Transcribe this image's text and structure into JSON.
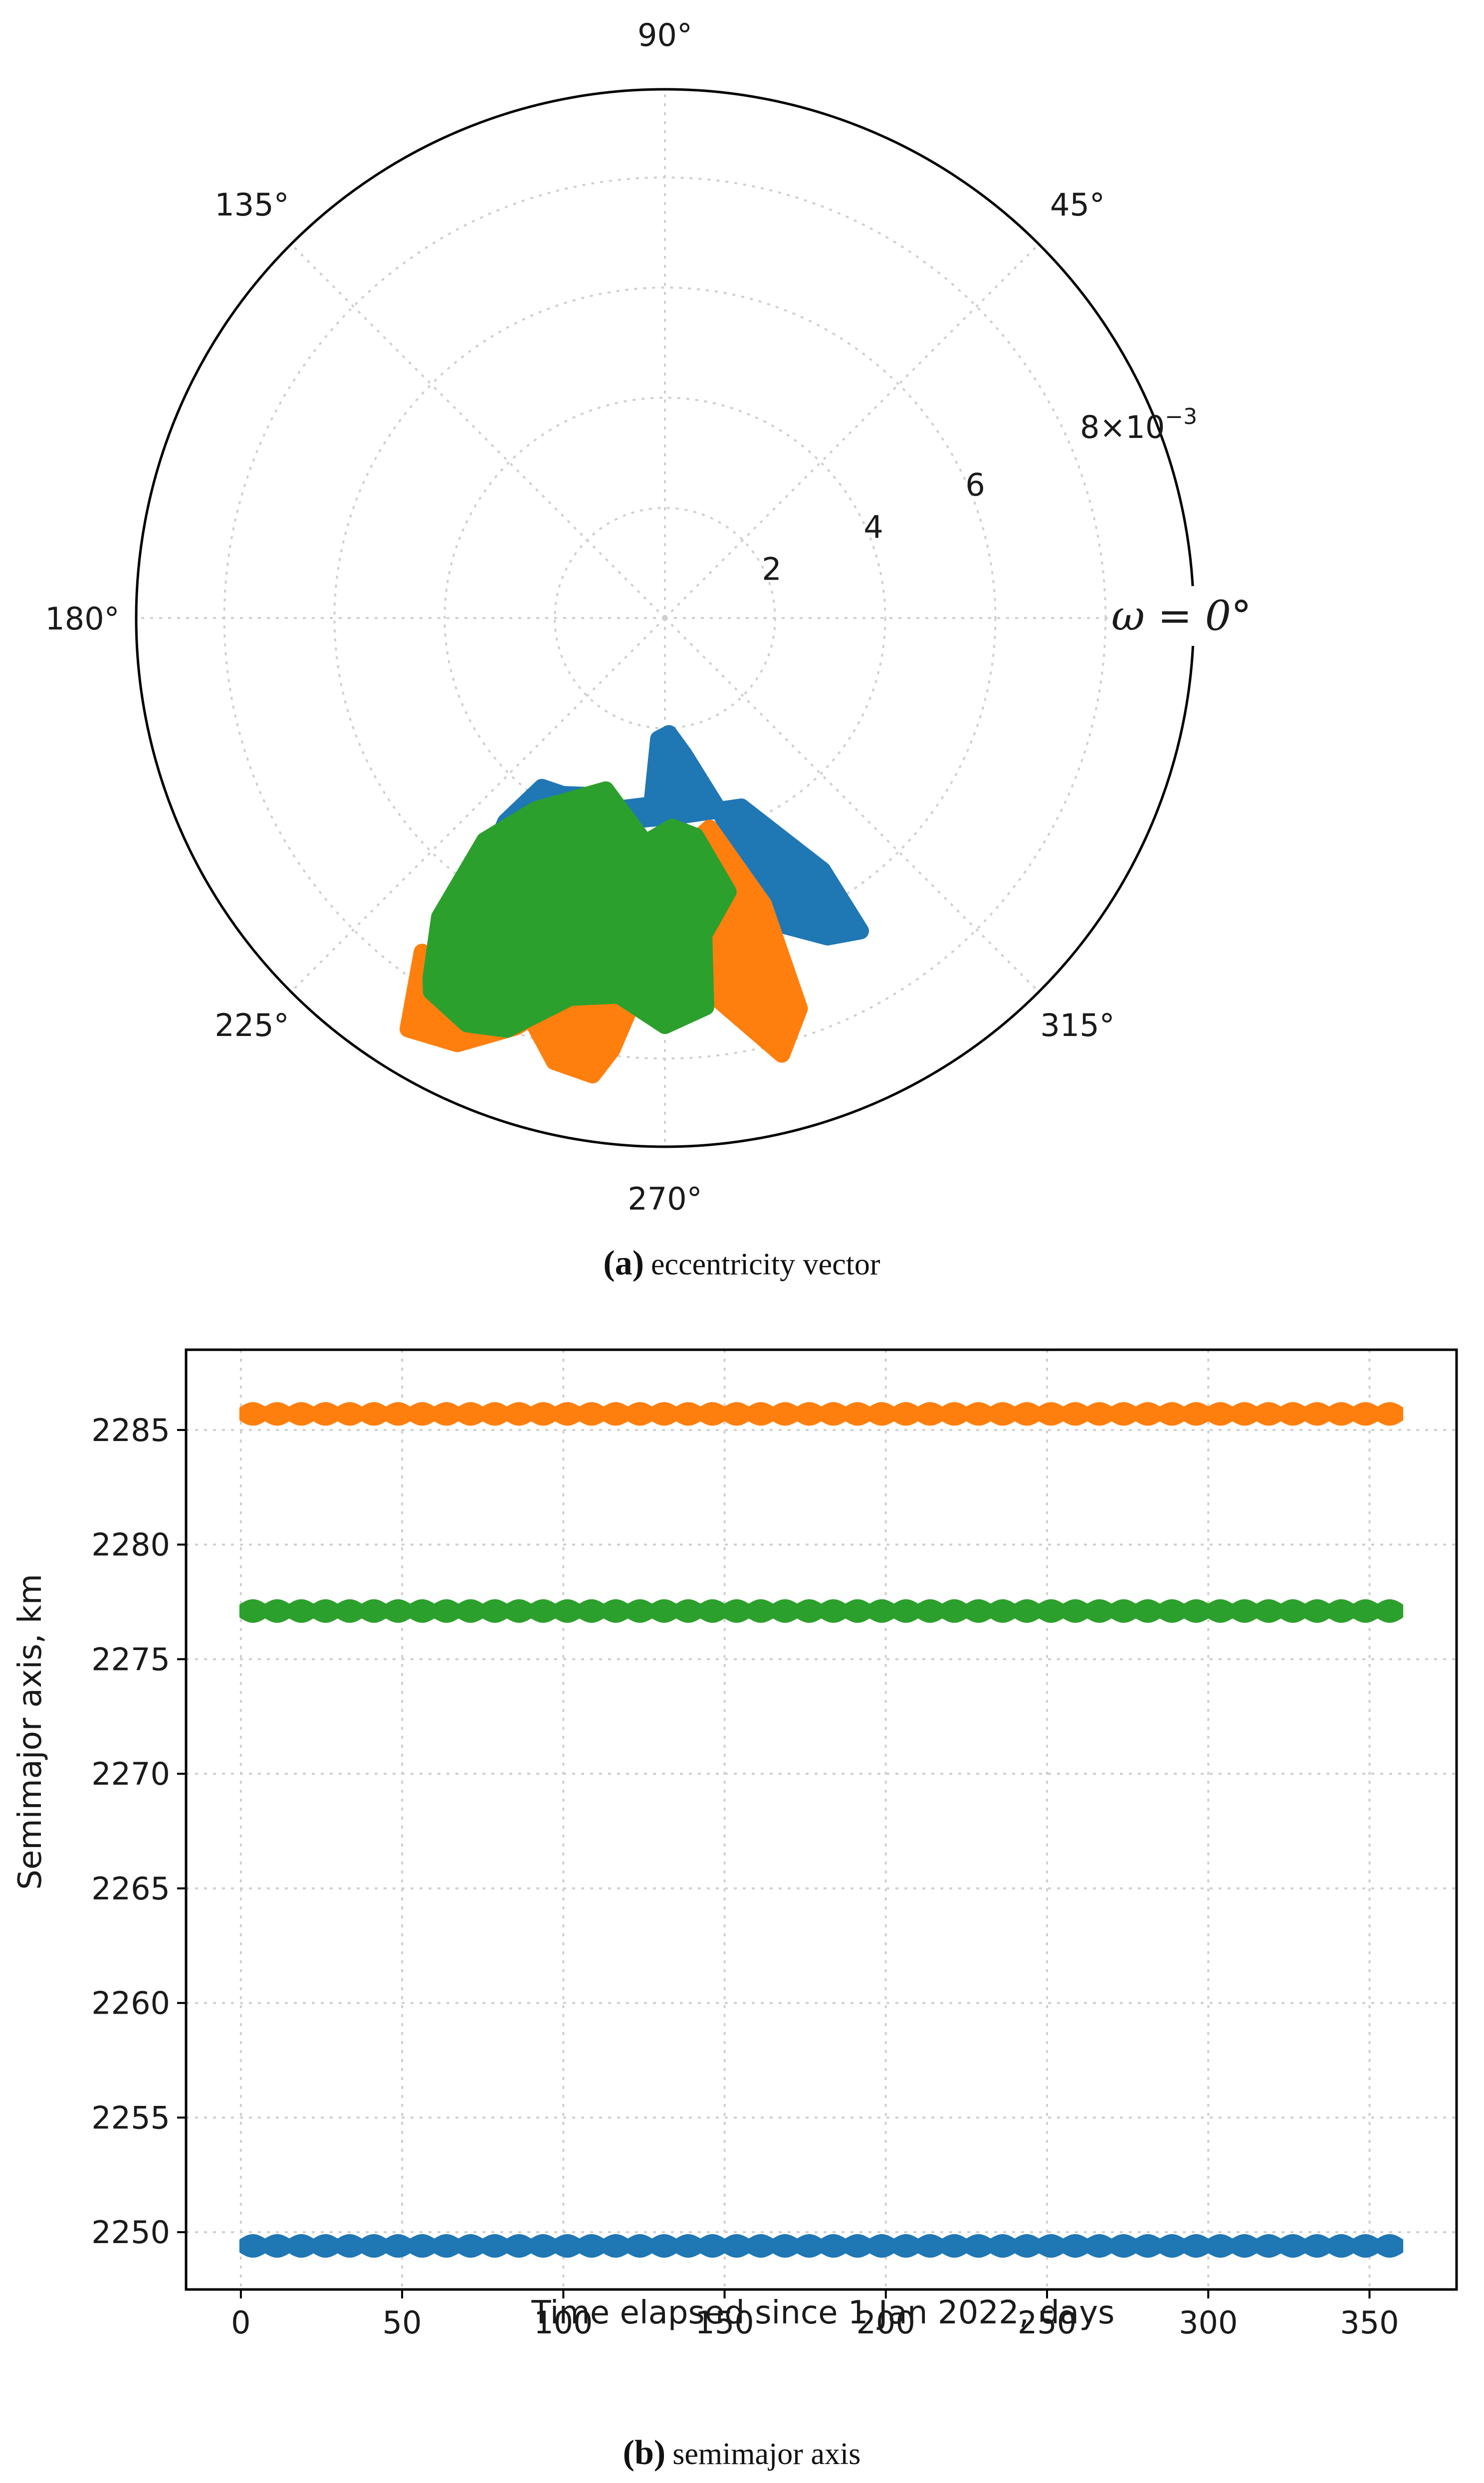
{
  "panel_a": {
    "caption_letter": "(a)",
    "caption_text": "eccentricity vector",
    "omega_label": "ω = 0°",
    "radial_exponent_label": "×10",
    "radial_exponent_power": "−3"
  },
  "panel_b": {
    "caption_letter": "(b)",
    "caption_text": "semimajor axis"
  },
  "colors": {
    "blue": "#1f77b4",
    "orange": "#ff7f0e",
    "green": "#2ca02c"
  },
  "chart_data": [
    {
      "type": "scatter",
      "projection": "polar",
      "title": "",
      "angular_ticks": [
        "90°",
        "45°",
        "135°",
        "180°",
        "225°",
        "270°",
        "315°"
      ],
      "radial_ticks": [
        2,
        4,
        6,
        8
      ],
      "radial_tick_labels": [
        "2",
        "4",
        "6",
        "8"
      ],
      "radial_max": 9.6,
      "radial_scale": 0.001,
      "grid": true,
      "series": [
        {
          "color": "#1f77b4",
          "region_boundary": [
            [
              5.35,
              252
            ],
            [
              6.4,
              246
            ],
            [
              6.9,
              242
            ],
            [
              6.3,
              236
            ],
            [
              4.7,
              232
            ],
            [
              3.8,
              234
            ],
            [
              3.7,
              240
            ],
            [
              3.5,
              247
            ],
            [
              3.6,
              255
            ],
            [
              3.4,
              266
            ],
            [
              2.2,
              267
            ],
            [
              2.1,
              272
            ],
            [
              2.5,
              278
            ],
            [
              3.7,
              286
            ],
            [
              5.9,
              290
            ],
            [
              6.5,
              297
            ],
            [
              6.7,
              302
            ],
            [
              5.4,
              302
            ],
            [
              3.7,
              292
            ],
            [
              3.6,
              274
            ],
            [
              3.7,
              262
            ],
            [
              4.5,
              252
            ]
          ]
        },
        {
          "color": "#ff7f0e",
          "region_boundary": [
            [
              8.6,
              244
            ],
            [
              8.8,
              238
            ],
            [
              7.5,
              234
            ],
            [
              7.8,
              243
            ],
            [
              7.6,
              251
            ],
            [
              8.3,
              256
            ],
            [
              8.4,
              261
            ],
            [
              7.9,
              263
            ],
            [
              6.7,
              266
            ],
            [
              6.5,
              274
            ],
            [
              8.2,
              285
            ],
            [
              7.5,
              289
            ],
            [
              5.5,
              289
            ],
            [
              3.9,
              282
            ],
            [
              4.3,
              274
            ],
            [
              4.4,
              268
            ],
            [
              4.5,
              266
            ],
            [
              6.4,
              272
            ],
            [
              6.0,
              277
            ],
            [
              6.3,
              265
            ],
            [
              6.9,
              257
            ],
            [
              7.9,
              250
            ]
          ]
        },
        {
          "color": "#2ca02c",
          "region_boundary": [
            [
              8.0,
              238
            ],
            [
              7.8,
              237
            ],
            [
              6.8,
              233
            ],
            [
              5.2,
              231
            ],
            [
              4.2,
              236
            ],
            [
              3.3,
              251
            ],
            [
              4.1,
              265
            ],
            [
              3.8,
              272
            ],
            [
              4.0,
              278
            ],
            [
              5.1,
              283
            ],
            [
              5.8,
              277
            ],
            [
              7.1,
              276
            ],
            [
              7.4,
              270
            ],
            [
              6.9,
              263
            ],
            [
              7.1,
              256
            ],
            [
              8.0,
              249
            ],
            [
              8.2,
              244
            ]
          ]
        }
      ]
    },
    {
      "type": "scatter",
      "title": "",
      "xlabel": "Time elapsed since 1 Jan 2022, days",
      "ylabel": "Semimajor axis, km",
      "xlim": [
        -17,
        377
      ],
      "ylim": [
        2247.5,
        2288.5
      ],
      "xticks": [
        0,
        50,
        100,
        150,
        200,
        250,
        300,
        350
      ],
      "yticks": [
        2250,
        2255,
        2260,
        2265,
        2270,
        2275,
        2280,
        2285
      ],
      "grid": true,
      "series": [
        {
          "color": "#ff7f0e",
          "x": [
            0,
            360
          ],
          "mean": 2285.7,
          "amplitude": 0.45,
          "oscillation_period_days": 7.5
        },
        {
          "color": "#2ca02c",
          "x": [
            0,
            360
          ],
          "mean": 2277.1,
          "amplitude": 0.45,
          "oscillation_period_days": 7.5
        },
        {
          "color": "#1f77b4",
          "x": [
            0,
            360
          ],
          "mean": 2249.4,
          "amplitude": 0.45,
          "oscillation_period_days": 7.5
        }
      ]
    }
  ]
}
